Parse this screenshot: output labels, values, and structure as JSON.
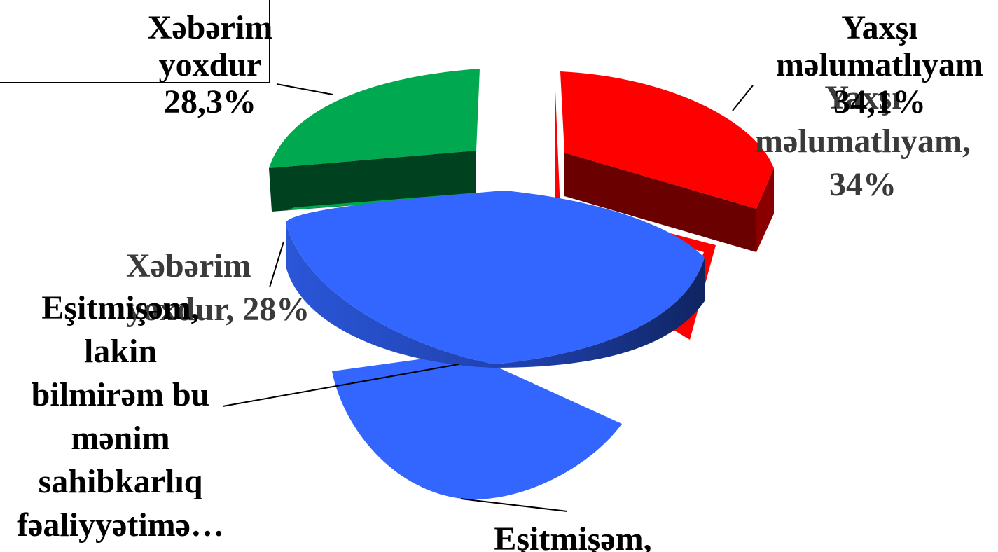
{
  "chart_data": {
    "type": "pie",
    "style": "3d-exploded",
    "legend": "none",
    "slices": [
      {
        "category": "Yaxşı məlumatlıyam",
        "value": 34.1,
        "color": "#ff0000",
        "side_color": "#6a0000"
      },
      {
        "category": "Eşitmişəm, lakin bilmirəm bu mənim sahibkarlıq fəaliyyətimə…",
        "value": 37.6,
        "color": "#3366ff",
        "side_color": "#1a3088"
      },
      {
        "category": "Xəbərim yoxdur",
        "value": 28.3,
        "color": "#00a84f",
        "side_color": "#004220"
      }
    ],
    "labels": {
      "main": [
        {
          "lines": [
            "Yaxşı",
            "məlumatlıyam",
            "34,1%"
          ]
        },
        {
          "lines": [
            "Xəbərim",
            "yoxdur",
            "28,3%"
          ]
        },
        {
          "lines": [
            "Eşitmişəm,",
            "lakin",
            "bilmirəm bu",
            "mənim",
            "sahibkarlıq",
            "fəaliyyətimə…"
          ]
        },
        {
          "lines": [
            "Eşitmişəm,"
          ]
        }
      ],
      "overlay": [
        {
          "lines": [
            "Yaxşı",
            "məlumatlıyam,",
            "34%"
          ]
        },
        {
          "lines": [
            "Xəbərim",
            "yoxdur, 28%"
          ]
        }
      ]
    }
  }
}
